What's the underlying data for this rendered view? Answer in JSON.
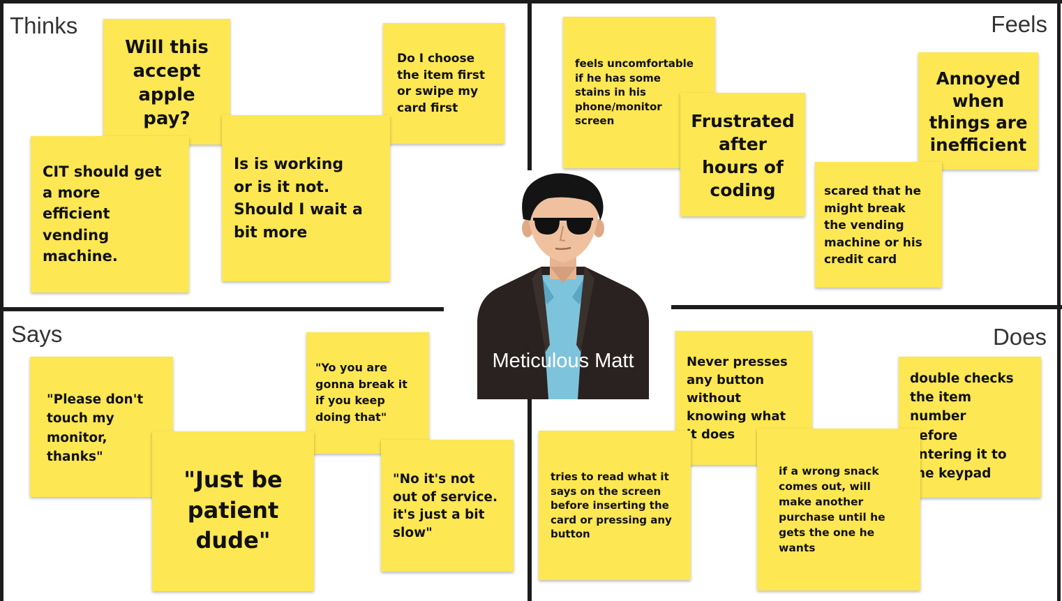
{
  "quadrants": {
    "thinks": "Thinks",
    "feels": "Feels",
    "says": "Says",
    "does": "Does"
  },
  "persona": {
    "name": "Meticulous Matt",
    "image": "man-with-sunglasses-illustration"
  },
  "notes": {
    "thinks": [
      "Will this\naccept\napple\npay?",
      "Do I choose\nthe item first\nor swipe my\ncard first",
      "CIT should get\na more\nefficient\nvending\nmachine.",
      "Is is working\nor is it not.\nShould I wait a\nbit more"
    ],
    "feels": [
      "feels uncomfortable\nif he has some\nstains in his\nphone/monitor\nscreen",
      "Frustrated\nafter\nhours of\ncoding",
      "Annoyed\nwhen\nthings are\ninefficient",
      "scared that he\nmight break\nthe vending\nmachine or his\ncredit card"
    ],
    "says": [
      "\"Please don't\ntouch my\nmonitor,\nthanks\"",
      "\"Yo you are\ngonna break it\nif you keep\ndoing that\"",
      "\"Just be\npatient\ndude\"",
      "\"No it's not\nout of service.\nit's just a bit\nslow\""
    ],
    "does": [
      "Never presses\nany button\nwithout\nknowing what\nit does",
      "double checks\nthe item\nnumber\nbefore\nentering it to\nthe keypad",
      "tries to read what it\nsays on the screen\nbefore inserting the\ncard or pressing any\nbutton",
      "if a wrong snack\ncomes out, will\nmake another\npurchase until he\ngets the one he\nwants"
    ]
  },
  "colors": {
    "note": "#fde753",
    "border": "#1c1c1c",
    "label": "#333333"
  }
}
